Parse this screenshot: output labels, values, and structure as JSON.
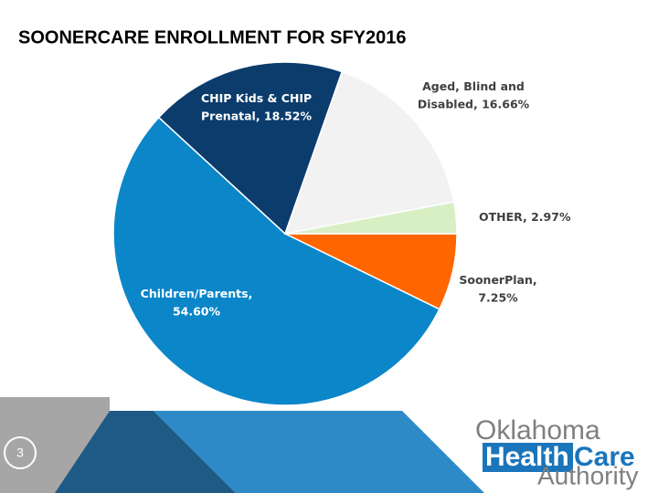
{
  "chart_data": {
    "type": "pie",
    "title": "SOONERCARE ENROLLMENT FOR SFY2016",
    "values": [
      7.25,
      54.6,
      18.52,
      16.66,
      2.97
    ],
    "value_labels": [
      [
        "SoonerPlan,",
        "7.25%"
      ],
      [
        "Children/Parents,",
        "54.60%"
      ],
      [
        "CHIP Kids & CHIP",
        "Prenatal, 18.52%"
      ],
      [
        "Aged, Blind and",
        "Disabled, 16.66%"
      ],
      [
        "OTHER, 2.97%"
      ]
    ],
    "colors": [
      "#ff6600",
      "#0b86c9",
      "#0c3c6c",
      "#f2f2f2",
      "#d8efc4"
    ],
    "start_angle": 90
  },
  "slide": {
    "page_number": "3",
    "logo": {
      "top": "Oklahoma",
      "health": "Health",
      "care": "Care",
      "bottom": "Authority"
    }
  }
}
